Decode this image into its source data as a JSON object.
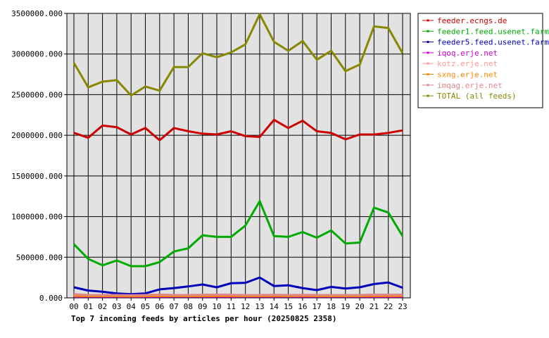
{
  "chart_data": {
    "type": "line",
    "title": "Top 7 incoming feeds by articles per hour (20250825 2358)",
    "xlabel": "",
    "ylabel": "",
    "categories": [
      "00",
      "01",
      "02",
      "03",
      "04",
      "05",
      "06",
      "07",
      "08",
      "09",
      "10",
      "11",
      "12",
      "13",
      "14",
      "15",
      "16",
      "17",
      "18",
      "19",
      "20",
      "21",
      "22",
      "23"
    ],
    "ylim": [
      0,
      3500000
    ],
    "yticks": [
      "0.000",
      "500000.000",
      "1000000.000",
      "1500000.000",
      "2000000.000",
      "2500000.000",
      "3000000.000",
      "3500000.000"
    ],
    "grid": true,
    "legend_position": "right",
    "series": [
      {
        "name": "feeder.ecngs.de",
        "color": "#cc0000",
        "values": [
          2030000,
          1970000,
          2120000,
          2100000,
          2010000,
          2090000,
          1940000,
          2090000,
          2050000,
          2020000,
          2010000,
          2050000,
          1990000,
          1980000,
          2190000,
          2090000,
          2180000,
          2050000,
          2030000,
          1950000,
          2010000,
          2010000,
          2030000,
          2060000
        ]
      },
      {
        "name": "feeder1.feed.usenet.farm",
        "color": "#00aa00",
        "values": [
          660000,
          480000,
          400000,
          460000,
          390000,
          390000,
          440000,
          570000,
          610000,
          770000,
          750000,
          750000,
          890000,
          1190000,
          760000,
          750000,
          810000,
          740000,
          830000,
          670000,
          680000,
          1110000,
          1050000,
          760000
        ]
      },
      {
        "name": "feeder5.feed.usenet.farm",
        "color": "#0000bb",
        "values": [
          130000,
          90000,
          75000,
          55000,
          45000,
          55000,
          105000,
          120000,
          140000,
          165000,
          130000,
          180000,
          185000,
          250000,
          145000,
          155000,
          120000,
          95000,
          135000,
          115000,
          130000,
          170000,
          190000,
          125000
        ]
      },
      {
        "name": "iqoq.erje.net",
        "color": "#cc00cc",
        "values": [
          15000,
          15000,
          15000,
          15000,
          15000,
          15000,
          15000,
          15000,
          15000,
          15000,
          15000,
          15000,
          15000,
          15000,
          15000,
          15000,
          15000,
          15000,
          15000,
          15000,
          15000,
          15000,
          15000,
          15000
        ]
      },
      {
        "name": "kotz.erje.net",
        "color": "#ff9999",
        "values": [
          40000,
          30000,
          30000,
          30000,
          28000,
          30000,
          32000,
          30000,
          30000,
          32000,
          35000,
          33000,
          30000,
          30000,
          32000,
          30000,
          32000,
          30000,
          30000,
          30000,
          30000,
          35000,
          33000,
          35000
        ]
      },
      {
        "name": "sxng.erje.net",
        "color": "#ff8800",
        "values": [
          25000,
          22000,
          22000,
          22000,
          20000,
          22000,
          24000,
          22000,
          22000,
          22000,
          24000,
          23000,
          22000,
          22000,
          23000,
          22000,
          23000,
          22000,
          22000,
          22000,
          22000,
          25000,
          23000,
          24000
        ]
      },
      {
        "name": "imqag.erje.net",
        "color": "#dd8888",
        "values": [
          45000,
          35000,
          35000,
          35000,
          32000,
          35000,
          40000,
          35000,
          35000,
          38000,
          40000,
          38000,
          35000,
          35000,
          38000,
          35000,
          37000,
          35000,
          35000,
          35000,
          35000,
          40000,
          38000,
          40000
        ]
      },
      {
        "name": "TOTAL (all feeds)",
        "color": "#888800",
        "values": [
          2890000,
          2590000,
          2660000,
          2680000,
          2490000,
          2600000,
          2550000,
          2840000,
          2840000,
          3010000,
          2960000,
          3020000,
          3120000,
          3490000,
          3150000,
          3040000,
          3160000,
          2930000,
          3040000,
          2790000,
          2870000,
          3340000,
          3320000,
          3010000
        ]
      }
    ]
  }
}
